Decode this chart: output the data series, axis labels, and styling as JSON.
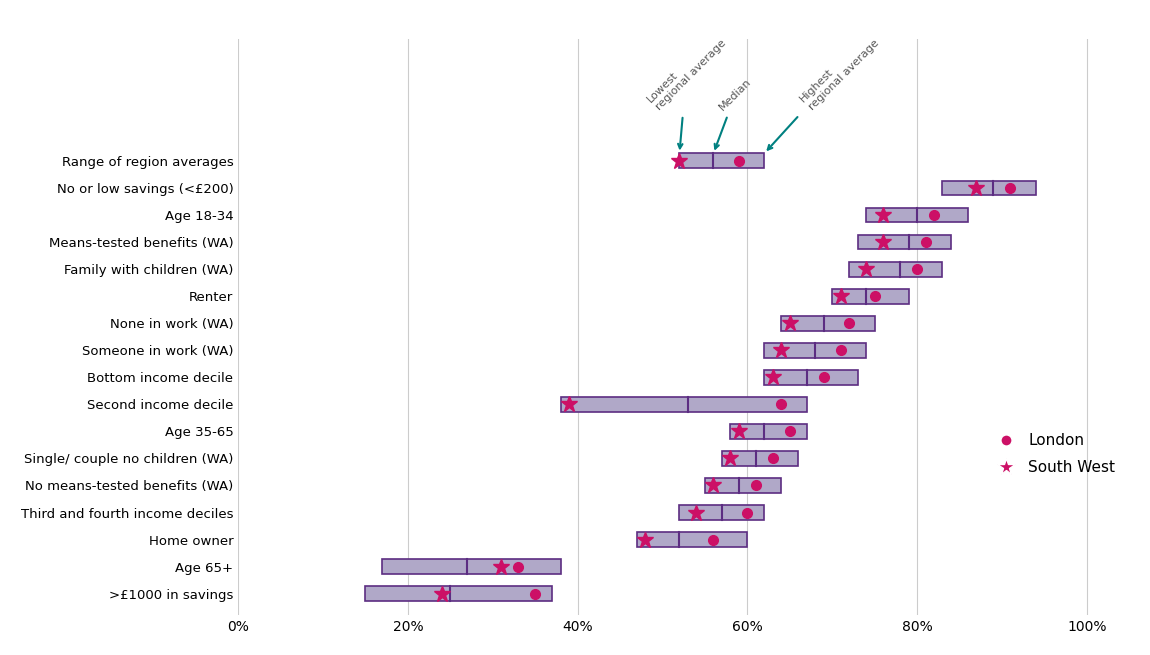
{
  "categories": [
    "Range of region averages",
    "No or low savings (<£200)",
    "Age 18-34",
    "Means-tested benefits (WA)",
    "Family with children (WA)",
    "Renter",
    "None in work (WA)",
    "Someone in work (WA)",
    "Bottom income decile",
    "Second income decile",
    "Age 35-65",
    "Single/ couple no children (WA)",
    "No means-tested benefits (WA)",
    "Third and fourth income deciles",
    "Home owner",
    "Age 65+",
    ">£1000 in savings"
  ],
  "bar_low": [
    0.52,
    0.83,
    0.74,
    0.73,
    0.72,
    0.7,
    0.64,
    0.62,
    0.62,
    0.38,
    0.58,
    0.57,
    0.55,
    0.52,
    0.47,
    0.17,
    0.15
  ],
  "bar_high": [
    0.62,
    0.94,
    0.86,
    0.84,
    0.83,
    0.79,
    0.75,
    0.74,
    0.73,
    0.67,
    0.67,
    0.66,
    0.64,
    0.62,
    0.6,
    0.38,
    0.37
  ],
  "median": [
    0.56,
    0.89,
    0.8,
    0.79,
    0.78,
    0.74,
    0.69,
    0.68,
    0.67,
    0.53,
    0.62,
    0.61,
    0.59,
    0.57,
    0.52,
    0.27,
    0.25
  ],
  "london": [
    0.59,
    0.91,
    0.82,
    0.81,
    0.8,
    0.75,
    0.72,
    0.71,
    0.69,
    0.64,
    0.65,
    0.63,
    0.61,
    0.6,
    0.56,
    0.33,
    0.35
  ],
  "south_west": [
    0.52,
    0.87,
    0.76,
    0.76,
    0.74,
    0.71,
    0.65,
    0.64,
    0.63,
    0.39,
    0.59,
    0.58,
    0.56,
    0.54,
    0.48,
    0.31,
    0.24
  ],
  "bar_color": "#b0a8c8",
  "bar_edge_color": "#5c2d82",
  "london_color": "#cc1066",
  "south_west_color": "#cc1066",
  "annotation_color": "#008080",
  "xlim": [
    0.0,
    1.05
  ],
  "xtick_values": [
    0.0,
    0.2,
    0.4,
    0.6,
    0.8,
    1.0
  ],
  "xtick_labels": [
    "0%",
    "20%",
    "40%",
    "60%",
    "80%",
    "100%"
  ],
  "bar_height": 0.55
}
